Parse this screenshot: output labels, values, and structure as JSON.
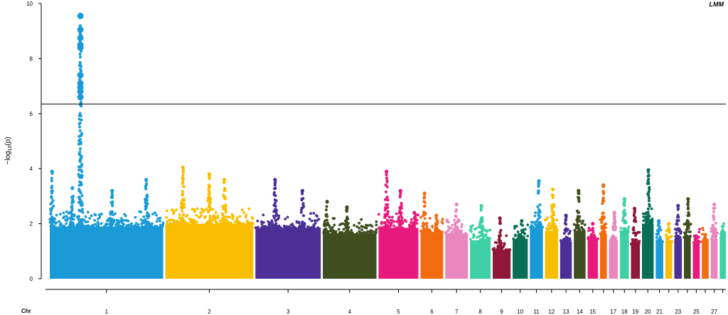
{
  "chart_data": {
    "type": "scatter",
    "title": "",
    "panel_label": "LMM",
    "xlabel": "Chr",
    "ylabel_base": "−log",
    "ylabel_sub": "10",
    "ylabel_arg": "(p)",
    "ylim": [
      0,
      10
    ],
    "yticks": [
      0,
      2,
      4,
      6,
      8,
      10
    ],
    "threshold": 6.35,
    "grid": false,
    "legend": "none",
    "colors": [
      "#1a9bd7",
      "#f9be00",
      "#4b2f97",
      "#3f4e1f",
      "#e8197d",
      "#f26b0f",
      "#e986be",
      "#3fd0a5",
      "#8f1737",
      "#0a6e57"
    ],
    "chromosomes": [
      {
        "chr": "1",
        "label": "1",
        "w": 165,
        "h": 1.9,
        "peaks": [
          [
            0.27,
            9.55
          ],
          [
            0.2,
            3.3
          ],
          [
            0.55,
            3.2
          ],
          [
            0.85,
            3.6
          ],
          [
            0.02,
            3.9
          ]
        ]
      },
      {
        "chr": "2",
        "label": "2",
        "w": 128,
        "h": 2.0,
        "peaks": [
          [
            0.2,
            4.05
          ],
          [
            0.5,
            3.8
          ],
          [
            0.67,
            3.6
          ]
        ]
      },
      {
        "chr": "3",
        "label": "3",
        "w": 95,
        "h": 1.85,
        "peaks": [
          [
            0.3,
            3.6
          ],
          [
            0.72,
            3.2
          ]
        ]
      },
      {
        "chr": "4",
        "label": "4",
        "w": 78,
        "h": 1.65,
        "peaks": [
          [
            0.45,
            2.6
          ],
          [
            0.08,
            2.8
          ]
        ]
      },
      {
        "chr": "5",
        "label": "5",
        "w": 58,
        "h": 1.85,
        "peaks": [
          [
            0.2,
            3.9
          ],
          [
            0.55,
            3.2
          ],
          [
            0.9,
            2.4
          ]
        ]
      },
      {
        "chr": "6",
        "label": "6",
        "w": 33,
        "h": 1.7,
        "peaks": [
          [
            0.18,
            3.1
          ],
          [
            0.7,
            2.3
          ]
        ]
      },
      {
        "chr": "7",
        "label": "7",
        "w": 33,
        "h": 1.65,
        "peaks": [
          [
            0.5,
            2.7
          ]
        ]
      },
      {
        "chr": "8",
        "label": "8",
        "w": 30,
        "h": 1.4,
        "peaks": [
          [
            0.55,
            2.65
          ]
        ]
      },
      {
        "chr": "9",
        "label": "9",
        "w": 26,
        "h": 1.05,
        "peaks": [
          [
            0.4,
            2.2
          ]
        ]
      },
      {
        "chr": "10",
        "label": "10",
        "w": 22,
        "h": 1.45,
        "peaks": [
          [
            0.6,
            2.1
          ]
        ]
      },
      {
        "chr": "11",
        "label": "11",
        "w": 19,
        "h": 1.85,
        "peaks": [
          [
            0.7,
            3.55
          ]
        ]
      },
      {
        "chr": "12",
        "label": "12",
        "w": 19,
        "h": 1.75,
        "peaks": [
          [
            0.6,
            3.25
          ]
        ]
      },
      {
        "chr": "13",
        "label": "13",
        "w": 17,
        "h": 1.35,
        "peaks": [
          [
            0.5,
            2.3
          ]
        ]
      },
      {
        "chr": "14",
        "label": "14",
        "w": 17,
        "h": 1.75,
        "peaks": [
          [
            0.4,
            3.2
          ]
        ]
      },
      {
        "chr": "15",
        "label": "15",
        "w": 15,
        "h": 1.45,
        "peaks": [
          [
            0.5,
            2.0
          ]
        ]
      },
      {
        "chr": "16",
        "label": "",
        "w": 10,
        "h": 1.6,
        "peaks": [
          [
            0.5,
            3.4
          ]
        ]
      },
      {
        "chr": "17",
        "label": "17",
        "w": 13,
        "h": 1.35,
        "peaks": [
          [
            0.6,
            2.4
          ]
        ]
      },
      {
        "chr": "18",
        "label": "18",
        "w": 13,
        "h": 1.7,
        "peaks": [
          [
            0.5,
            2.9
          ]
        ]
      },
      {
        "chr": "19",
        "label": "19",
        "w": 13,
        "h": 1.25,
        "peaks": [
          [
            0.4,
            2.55
          ]
        ]
      },
      {
        "chr": "20",
        "label": "20",
        "w": 17,
        "h": 2.0,
        "peaks": [
          [
            0.55,
            3.95
          ]
        ]
      },
      {
        "chr": "21",
        "label": "21",
        "w": 11,
        "h": 1.35,
        "peaks": [
          [
            0.4,
            2.1
          ]
        ]
      },
      {
        "chr": "22",
        "label": "",
        "w": 10,
        "h": 1.35,
        "peaks": [
          [
            0.5,
            2.0
          ]
        ]
      },
      {
        "chr": "23",
        "label": "23",
        "w": 11,
        "h": 1.45,
        "peaks": [
          [
            0.5,
            2.65
          ]
        ]
      },
      {
        "chr": "24",
        "label": "",
        "w": 10,
        "h": 1.5,
        "peaks": [
          [
            0.6,
            2.9
          ]
        ]
      },
      {
        "chr": "25",
        "label": "25",
        "w": 10,
        "h": 1.3,
        "peaks": [
          [
            0.5,
            1.55
          ]
        ]
      },
      {
        "chr": "26",
        "label": "",
        "w": 10,
        "h": 1.35,
        "peaks": [
          [
            0.5,
            1.6
          ]
        ]
      },
      {
        "chr": "27",
        "label": "27",
        "w": 10,
        "h": 1.45,
        "peaks": [
          [
            0.5,
            2.7
          ]
        ]
      },
      {
        "chr": "28",
        "label": "",
        "w": 9,
        "h": 1.55,
        "peaks": [
          [
            0.5,
            1.9
          ]
        ]
      }
    ]
  }
}
